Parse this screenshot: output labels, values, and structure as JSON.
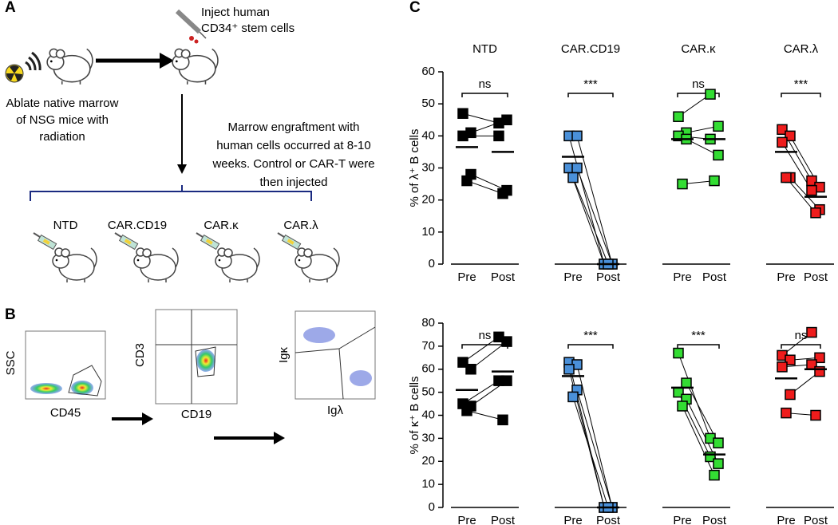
{
  "panel_labels": {
    "a": "A",
    "b": "B",
    "c": "C"
  },
  "panel_a": {
    "ablate": [
      "Ablate native marrow",
      "of NSG mice with",
      "radiation"
    ],
    "inject": [
      "Inject human",
      "CD34⁺ stem cells"
    ],
    "engraft": [
      "Marrow engraftment with",
      "human cells occurred at 8-10",
      "weeks. Control or CAR-T were",
      "then injected"
    ],
    "groups": [
      {
        "label": "NTD",
        "color": "#000000"
      },
      {
        "label": "CAR.CD19",
        "color": "#2a7fc9"
      },
      {
        "label": "CAR.κ",
        "color": "#22cc22"
      },
      {
        "label": "CAR.λ",
        "color": "#ee1c1c"
      }
    ]
  },
  "panel_b": {
    "plots": [
      {
        "y": "SSC",
        "x": "CD45"
      },
      {
        "y": "CD3",
        "x": "CD19"
      },
      {
        "y": "Igκ",
        "x": "Igλ"
      }
    ]
  },
  "chart_data": [
    {
      "type": "paired-dot",
      "ylabel": "% of λ⁺ B cells",
      "ylim": [
        0,
        60
      ],
      "yticks": [
        0,
        10,
        20,
        30,
        40,
        50,
        60
      ],
      "groups": [
        {
          "name": "NTD",
          "color": "#000000",
          "categories": [
            "Pre",
            "Post"
          ],
          "significance": "ns",
          "pre": [
            47,
            41,
            40,
            28,
            26
          ],
          "post": [
            44,
            45,
            40,
            23,
            22
          ],
          "means": [
            36.5,
            35
          ]
        },
        {
          "name": "CAR.CD19",
          "color": "#4a90d9",
          "categories": [
            "Pre",
            "Post"
          ],
          "significance": "***",
          "pre": [
            40,
            40,
            30,
            30,
            27
          ],
          "post": [
            0,
            0,
            0,
            0,
            0
          ],
          "means": [
            33.5,
            0
          ]
        },
        {
          "name": "CAR.κ",
          "color": "#33dd33",
          "categories": [
            "Pre",
            "Post"
          ],
          "significance": "ns",
          "pre": [
            46,
            41,
            40,
            39,
            25
          ],
          "post": [
            53,
            43,
            39,
            34,
            26
          ],
          "means": [
            39,
            39
          ]
        },
        {
          "name": "CAR.λ",
          "color": "#ee1c1c",
          "categories": [
            "Pre",
            "Post"
          ],
          "significance": "***",
          "pre": [
            42,
            40,
            38,
            27,
            27
          ],
          "post": [
            26,
            24,
            23,
            17,
            16
          ],
          "means": [
            35,
            21
          ]
        }
      ]
    },
    {
      "type": "paired-dot",
      "ylabel": "% of κ⁺ B cells",
      "ylim": [
        0,
        80
      ],
      "yticks": [
        0,
        10,
        20,
        30,
        40,
        50,
        60,
        70,
        80
      ],
      "groups": [
        {
          "color": "#000000",
          "categories": [
            "Pre",
            "Post"
          ],
          "significance": "ns",
          "pre": [
            63,
            60,
            45,
            44,
            42
          ],
          "post": [
            74,
            72,
            55,
            55,
            38
          ],
          "means": [
            51,
            59
          ]
        },
        {
          "color": "#4a90d9",
          "categories": [
            "Pre",
            "Post"
          ],
          "significance": "***",
          "pre": [
            63,
            62,
            60,
            51,
            48
          ],
          "post": [
            0,
            0,
            0,
            0,
            0
          ],
          "means": [
            57,
            0
          ]
        },
        {
          "color": "#33dd33",
          "categories": [
            "Pre",
            "Post"
          ],
          "significance": "***",
          "pre": [
            67,
            54,
            50,
            47,
            44
          ],
          "post": [
            30,
            28,
            22,
            19,
            14
          ],
          "means": [
            52,
            23
          ]
        },
        {
          "color": "#ee1c1c",
          "categories": [
            "Pre",
            "Post"
          ],
          "significance": "ns",
          "pre": [
            66,
            64,
            61,
            49,
            41
          ],
          "post": [
            76,
            65,
            62,
            59,
            40
          ],
          "means": [
            56,
            60
          ]
        }
      ]
    }
  ]
}
